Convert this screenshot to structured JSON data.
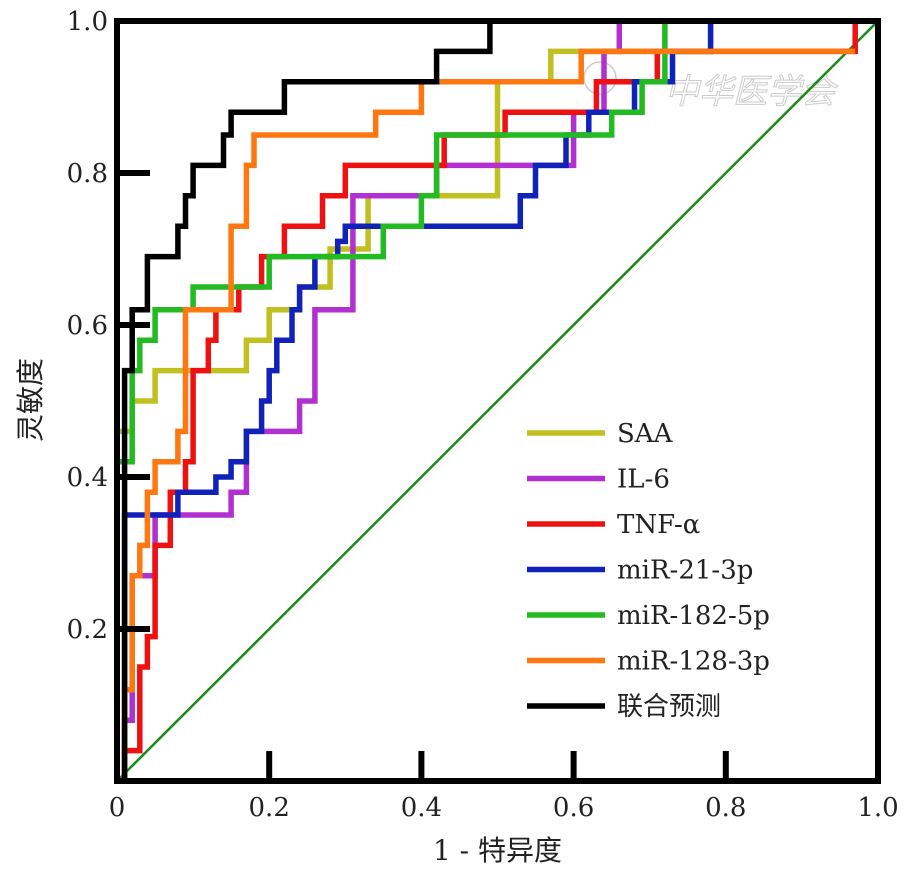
{
  "chart_data": {
    "type": "line",
    "title": "",
    "xlabel": "1 - 特异度",
    "ylabel": "灵敏度",
    "xlim": [
      0,
      1
    ],
    "ylim": [
      0,
      1
    ],
    "x_ticks": [
      0,
      0.2,
      0.4,
      0.6,
      0.8,
      1.0
    ],
    "x_tick_labels": [
      "0",
      "0.2",
      "0.4",
      "0.6",
      "0.8",
      "1.0"
    ],
    "y_ticks": [
      0.2,
      0.4,
      0.6,
      0.8,
      1.0
    ],
    "y_tick_labels": [
      "0.2",
      "0.4",
      "0.6",
      "0.8",
      "1.0"
    ],
    "grid": false,
    "legend_position": "bottom-right",
    "watermark": "中华医学会",
    "reference_line": {
      "x": [
        0,
        1
      ],
      "y": [
        0,
        1
      ],
      "color": "#1a8a1a"
    },
    "series": [
      {
        "name": "SAA",
        "color": "#c0c020",
        "x": [
          0,
          0,
          0.02,
          0.02,
          0.05,
          0.05,
          0.07,
          0.07,
          0.17,
          0.17,
          0.2,
          0.2,
          0.24,
          0.24,
          0.28,
          0.28,
          0.33,
          0.33,
          0.38,
          0.38,
          0.5,
          0.5,
          0.57,
          0.57,
          0.78,
          0.78,
          1.0
        ],
        "y": [
          0,
          0.46,
          0.46,
          0.5,
          0.5,
          0.54,
          0.54,
          0.54,
          0.54,
          0.58,
          0.58,
          0.62,
          0.62,
          0.65,
          0.65,
          0.7,
          0.7,
          0.77,
          0.77,
          0.77,
          0.77,
          0.92,
          0.92,
          0.96,
          0.96,
          1.0,
          1.0
        ]
      },
      {
        "name": "IL-6",
        "color": "#b030d0",
        "x": [
          0,
          0.01,
          0.01,
          0.02,
          0.02,
          0.05,
          0.05,
          0.15,
          0.15,
          0.17,
          0.17,
          0.24,
          0.24,
          0.26,
          0.26,
          0.31,
          0.31,
          0.34,
          0.34,
          0.42,
          0.42,
          0.47,
          0.47,
          0.6,
          0.6,
          0.64,
          0.64,
          0.66,
          0.66,
          1.0
        ],
        "y": [
          0,
          0,
          0.08,
          0.08,
          0.27,
          0.27,
          0.35,
          0.35,
          0.38,
          0.38,
          0.46,
          0.46,
          0.5,
          0.5,
          0.62,
          0.62,
          0.77,
          0.77,
          0.77,
          0.77,
          0.81,
          0.81,
          0.81,
          0.81,
          0.88,
          0.88,
          0.96,
          0.96,
          1.0,
          1.0
        ]
      },
      {
        "name": "TNF-α",
        "color": "#ee1111",
        "x": [
          0,
          0.01,
          0.01,
          0.03,
          0.03,
          0.04,
          0.04,
          0.05,
          0.05,
          0.07,
          0.07,
          0.09,
          0.09,
          0.1,
          0.1,
          0.12,
          0.12,
          0.13,
          0.13,
          0.16,
          0.16,
          0.19,
          0.19,
          0.22,
          0.22,
          0.24,
          0.24,
          0.27,
          0.27,
          0.3,
          0.3,
          0.39,
          0.39,
          0.43,
          0.43,
          0.47,
          0.47,
          0.51,
          0.51,
          0.63,
          0.63,
          0.71,
          0.71,
          0.97,
          0.97
        ],
        "y": [
          0,
          0,
          0.04,
          0.04,
          0.15,
          0.15,
          0.19,
          0.19,
          0.31,
          0.31,
          0.38,
          0.38,
          0.42,
          0.42,
          0.54,
          0.54,
          0.58,
          0.58,
          0.62,
          0.62,
          0.65,
          0.65,
          0.69,
          0.69,
          0.73,
          0.73,
          0.73,
          0.73,
          0.77,
          0.77,
          0.81,
          0.81,
          0.81,
          0.81,
          0.85,
          0.85,
          0.85,
          0.85,
          0.88,
          0.88,
          0.92,
          0.92,
          0.96,
          0.96,
          1.0
        ]
      },
      {
        "name": "miR-21-3p",
        "color": "#1122bb",
        "x": [
          0,
          0.01,
          0.01,
          0.04,
          0.04,
          0.08,
          0.08,
          0.09,
          0.09,
          0.13,
          0.13,
          0.15,
          0.15,
          0.17,
          0.17,
          0.19,
          0.19,
          0.2,
          0.2,
          0.21,
          0.21,
          0.23,
          0.23,
          0.24,
          0.24,
          0.26,
          0.26,
          0.29,
          0.29,
          0.3,
          0.3,
          0.53,
          0.53,
          0.55,
          0.55,
          0.59,
          0.59,
          0.62,
          0.62,
          0.68,
          0.68,
          0.73,
          0.73,
          0.78,
          0.78,
          0.85,
          0.85,
          0.97,
          0.97
        ],
        "y": [
          0,
          0,
          0.35,
          0.35,
          0.35,
          0.35,
          0.38,
          0.38,
          0.38,
          0.38,
          0.4,
          0.4,
          0.42,
          0.42,
          0.46,
          0.46,
          0.5,
          0.5,
          0.54,
          0.54,
          0.58,
          0.58,
          0.62,
          0.62,
          0.65,
          0.65,
          0.69,
          0.69,
          0.71,
          0.71,
          0.73,
          0.73,
          0.77,
          0.77,
          0.81,
          0.81,
          0.85,
          0.85,
          0.88,
          0.88,
          0.92,
          0.92,
          0.96,
          0.96,
          1.0,
          1.0,
          1.0,
          1.0,
          1.0
        ]
      },
      {
        "name": "miR-182-5p",
        "color": "#22bb22",
        "x": [
          0,
          0,
          0.02,
          0.02,
          0.03,
          0.03,
          0.05,
          0.05,
          0.06,
          0.06,
          0.1,
          0.1,
          0.14,
          0.14,
          0.2,
          0.2,
          0.24,
          0.24,
          0.35,
          0.35,
          0.4,
          0.4,
          0.42,
          0.42,
          0.45,
          0.45,
          0.5,
          0.5,
          0.56,
          0.56,
          0.65,
          0.65,
          0.69,
          0.69,
          0.72,
          0.72,
          1.0
        ],
        "y": [
          0,
          0.42,
          0.42,
          0.54,
          0.54,
          0.58,
          0.58,
          0.62,
          0.62,
          0.62,
          0.62,
          0.65,
          0.65,
          0.65,
          0.65,
          0.69,
          0.69,
          0.69,
          0.69,
          0.73,
          0.73,
          0.77,
          0.77,
          0.85,
          0.85,
          0.85,
          0.85,
          0.85,
          0.85,
          0.85,
          0.85,
          0.88,
          0.88,
          0.92,
          0.92,
          1.0,
          1.0
        ]
      },
      {
        "name": "miR-128-3p",
        "color": "#ff7711",
        "x": [
          0,
          0.01,
          0.01,
          0.02,
          0.02,
          0.03,
          0.03,
          0.04,
          0.04,
          0.05,
          0.05,
          0.08,
          0.08,
          0.09,
          0.09,
          0.13,
          0.13,
          0.15,
          0.15,
          0.17,
          0.17,
          0.18,
          0.18,
          0.26,
          0.26,
          0.34,
          0.34,
          0.4,
          0.4,
          0.47,
          0.47,
          0.61,
          0.61,
          0.84,
          0.84,
          0.97
        ],
        "y": [
          0,
          0,
          0.12,
          0.12,
          0.27,
          0.27,
          0.31,
          0.31,
          0.38,
          0.38,
          0.42,
          0.42,
          0.46,
          0.46,
          0.62,
          0.62,
          0.62,
          0.62,
          0.73,
          0.73,
          0.81,
          0.81,
          0.85,
          0.85,
          0.85,
          0.85,
          0.88,
          0.88,
          0.92,
          0.92,
          0.92,
          0.92,
          0.96,
          0.96,
          0.96,
          0.96
        ]
      },
      {
        "name": "联合预测",
        "color": "#000000",
        "x": [
          0,
          0.01,
          0.01,
          0.02,
          0.02,
          0.04,
          0.04,
          0.06,
          0.06,
          0.08,
          0.08,
          0.09,
          0.09,
          0.1,
          0.1,
          0.11,
          0.11,
          0.14,
          0.14,
          0.15,
          0.15,
          0.19,
          0.19,
          0.22,
          0.22,
          0.4,
          0.4,
          0.42,
          0.42,
          0.49,
          0.49,
          1.0
        ],
        "y": [
          0,
          0,
          0.54,
          0.54,
          0.62,
          0.62,
          0.69,
          0.69,
          0.69,
          0.69,
          0.73,
          0.73,
          0.77,
          0.77,
          0.81,
          0.81,
          0.81,
          0.81,
          0.85,
          0.85,
          0.88,
          0.88,
          0.88,
          0.88,
          0.92,
          0.92,
          0.92,
          0.92,
          0.96,
          0.96,
          1.0,
          1.0
        ]
      }
    ]
  }
}
